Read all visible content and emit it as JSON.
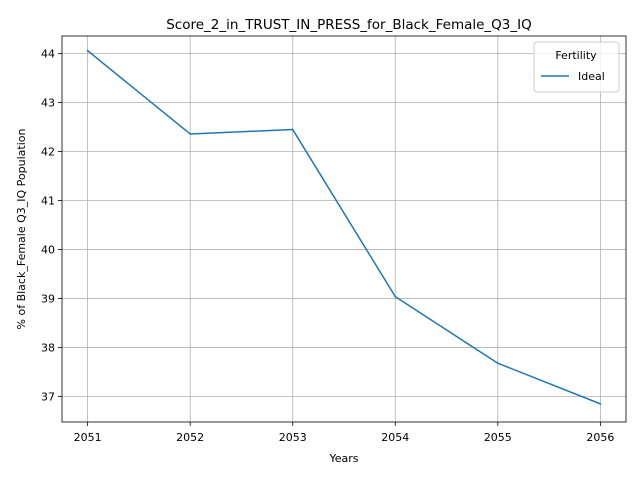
{
  "chart_data": {
    "type": "line",
    "title": "Score_2_in_TRUST_IN_PRESS_for_Black_Female_Q3_IQ",
    "xlabel": "Years",
    "ylabel": "% of Black_Female Q3_IQ Population",
    "x": [
      2051,
      2052,
      2053,
      2054,
      2055,
      2056
    ],
    "xticks": [
      "2051",
      "2052",
      "2053",
      "2054",
      "2055",
      "2056"
    ],
    "yticks": [
      "37",
      "38",
      "39",
      "40",
      "41",
      "42",
      "43",
      "44"
    ],
    "xlim": [
      2050.75,
      2056.25
    ],
    "ylim": [
      36.48,
      44.36
    ],
    "grid": true,
    "legend": {
      "title": "Fertility",
      "placement": "top-right"
    },
    "series": [
      {
        "name": "Ideal",
        "color": "#1f77b4",
        "values": [
          44.06,
          42.36,
          42.45,
          39.04,
          37.68,
          36.85
        ]
      }
    ]
  }
}
